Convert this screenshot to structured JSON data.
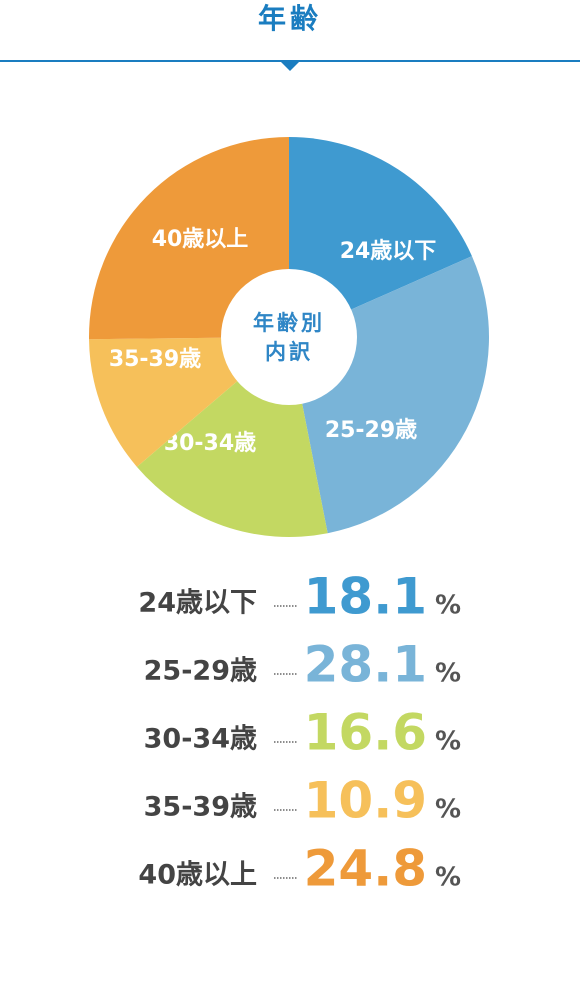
{
  "chart_data": {
    "type": "donut",
    "title": "年齢",
    "center_label": [
      "年齢別",
      "内訳"
    ],
    "categories": [
      "24歳以下",
      "25-29歳",
      "30-34歳",
      "35-39歳",
      "40歳以上"
    ],
    "values": [
      18.1,
      28.1,
      16.6,
      10.9,
      24.8
    ],
    "unit": "%",
    "colors": [
      "#3f9ad0",
      "#79b4d8",
      "#c3d862",
      "#f6c05a",
      "#ee9a3a"
    ]
  }
}
